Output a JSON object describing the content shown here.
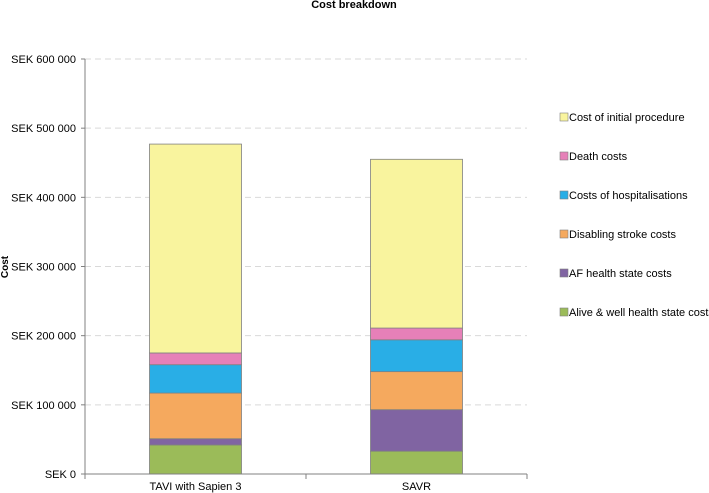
{
  "chart_data": {
    "type": "bar",
    "stacked": true,
    "title": "Cost breakdown",
    "ylabel": "Cost",
    "xlabel": "",
    "ylim": [
      0,
      600000
    ],
    "yticks": [
      0,
      100000,
      200000,
      300000,
      400000,
      500000,
      600000
    ],
    "ytick_labels": [
      "SEK  0",
      "SEK 100 000",
      "SEK 200 000",
      "SEK 300 000",
      "SEK 400 000",
      "SEK 500 000",
      "SEK 600 000"
    ],
    "grid": true,
    "legend_position": "right",
    "categories": [
      "TAVI with Sapien 3",
      "SAVR"
    ],
    "series": [
      {
        "name": "Alive & well health state costs",
        "color": "#9bbb59",
        "values": [
          42000,
          33000
        ]
      },
      {
        "name": "AF health state costs",
        "color": "#8064a2",
        "values": [
          9000,
          60000
        ]
      },
      {
        "name": "Disabling stroke costs",
        "color": "#f5a95e",
        "values": [
          66000,
          55000
        ]
      },
      {
        "name": "Costs of hospitalisations",
        "color": "#29aee6",
        "values": [
          41000,
          46000
        ]
      },
      {
        "name": "Death costs",
        "color": "#e680b8",
        "values": [
          17000,
          17000
        ]
      },
      {
        "name": "Cost of initial procedure",
        "color": "#f9f49e",
        "values": [
          302000,
          244000
        ]
      }
    ]
  }
}
